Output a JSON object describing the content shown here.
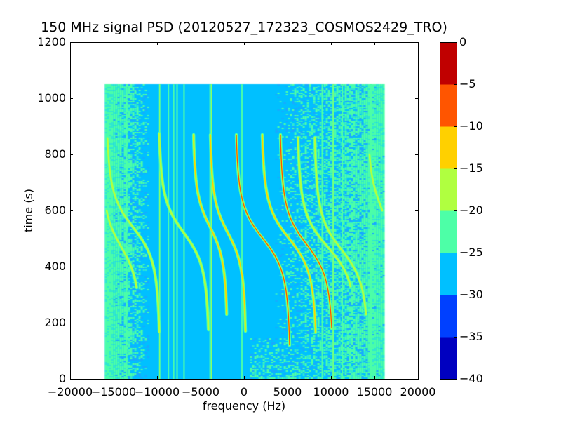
{
  "chart_data": {
    "type": "heatmap",
    "title": "150 MHz signal PSD (20120527_172323_COSMOS2429_TRO)",
    "xlabel": "frequency (Hz)",
    "ylabel": "time (s)",
    "xlim": [
      -20000,
      20000
    ],
    "ylim": [
      0,
      1200
    ],
    "data_extent": {
      "freq": [
        -16000,
        16000
      ],
      "time": [
        0,
        1050
      ]
    },
    "xticks": [
      -20000,
      -15000,
      -10000,
      -5000,
      0,
      5000,
      10000,
      15000,
      20000
    ],
    "xtick_labels": [
      "−20000",
      "−15000",
      "−10000",
      "−5000",
      "0",
      "5000",
      "10000",
      "15000",
      "20000"
    ],
    "yticks": [
      0,
      200,
      400,
      600,
      800,
      1000,
      1200
    ],
    "ytick_labels": [
      "0",
      "200",
      "400",
      "600",
      "800",
      "1000",
      "1200"
    ],
    "colorbar": {
      "range": [
        -40,
        0
      ],
      "levels": [
        -40,
        -35,
        -30,
        -25,
        -20,
        -15,
        -10,
        -5,
        0
      ],
      "tick_labels": [
        "−40",
        "−35",
        "−30",
        "−25",
        "−20",
        "−15",
        "−10",
        "−5",
        "0"
      ],
      "colors": [
        "#0000c0",
        "#0040ff",
        "#00c0ff",
        "#4dffa7",
        "#b0ff40",
        "#ffd000",
        "#ff5500",
        "#c00000"
      ]
    },
    "background_level_db": -27,
    "doppler_tracks": [
      {
        "f_top": -15700,
        "t_top": 858,
        "f_bottom": -9750,
        "t_bottom": 168,
        "t_mid": 540,
        "peak_db": -15
      },
      {
        "f_top": -15800,
        "t_top": 600,
        "f_bottom": -12350,
        "t_bottom": 325,
        "t_mid": 470,
        "peak_db": -17
      },
      {
        "f_top": -9750,
        "t_top": 875,
        "f_bottom": -4100,
        "t_bottom": 175,
        "t_mid": 520,
        "peak_db": -17
      },
      {
        "f_top": -5800,
        "t_top": 870,
        "f_bottom": -2000,
        "t_bottom": 230,
        "t_mid": 540,
        "peak_db": -10
      },
      {
        "f_top": -3870,
        "t_top": 870,
        "f_bottom": 160,
        "t_bottom": 170,
        "t_mid": 520,
        "peak_db": -8
      },
      {
        "f_top": -890,
        "t_top": 870,
        "f_bottom": 5240,
        "t_bottom": 120,
        "t_mid": 500,
        "peak_db": -3
      },
      {
        "f_top": 2100,
        "t_top": 870,
        "f_bottom": 8230,
        "t_bottom": 165,
        "t_mid": 500,
        "peak_db": -8
      },
      {
        "f_top": 4190,
        "t_top": 870,
        "f_bottom": 10080,
        "t_bottom": 180,
        "t_mid": 480,
        "peak_db": -5
      },
      {
        "f_top": 6210,
        "t_top": 860,
        "f_bottom": 12260,
        "t_bottom": 330,
        "t_mid": 470,
        "peak_db": -19
      },
      {
        "f_top": 8150,
        "t_top": 860,
        "f_bottom": 14030,
        "t_bottom": 230,
        "t_mid": 460,
        "peak_db": -17
      },
      {
        "f_top": 14430,
        "t_top": 800,
        "f_bottom": 15890,
        "t_bottom": 600,
        "t_mid": 620,
        "peak_db": -15
      }
    ],
    "constant_carriers_hz": [
      -13500,
      -9700,
      -8700,
      -8100,
      -7700,
      -6900,
      -3900,
      -3750,
      -250,
      9000,
      10250,
      11300,
      14600
    ]
  }
}
